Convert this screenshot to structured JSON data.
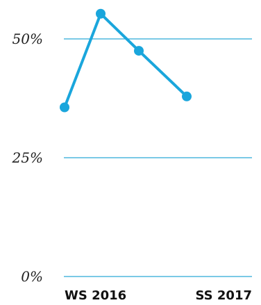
{
  "chart_data": {
    "type": "line",
    "title": "",
    "xlabel": "",
    "ylabel": "",
    "ylim": [
      0,
      57
    ],
    "y_ticks": [
      0,
      25,
      50
    ],
    "y_tick_labels": [
      "0%",
      "25%",
      "50%"
    ],
    "x_tick_labels": [
      "WS 2016",
      "SS 2017"
    ],
    "grid": true,
    "x": [
      0,
      1,
      2,
      3
    ],
    "series": [
      {
        "values": [
          35.6,
          55.3,
          47.5,
          37.9
        ],
        "color": "#1aa6dc"
      }
    ]
  }
}
